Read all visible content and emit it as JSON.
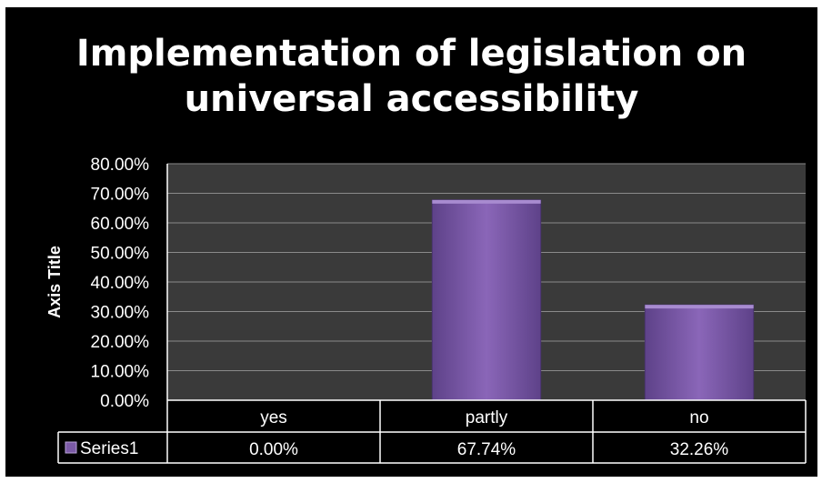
{
  "chart_data": {
    "type": "bar",
    "title": "Implementation of legislation on\nuniversal accessibility",
    "ylabel": "Axis Title",
    "xlabel": "",
    "categories": [
      "yes",
      "partly",
      "no"
    ],
    "series": [
      {
        "name": "Series1",
        "values": [
          0.0,
          67.74,
          32.26
        ]
      }
    ],
    "data_table_values": [
      "0.00%",
      "67.74%",
      "32.26%"
    ],
    "ylim": [
      0,
      80
    ],
    "yticks": [
      0,
      10,
      20,
      30,
      40,
      50,
      60,
      70,
      80
    ],
    "ytick_labels": [
      "0.00%",
      "10.00%",
      "20.00%",
      "30.00%",
      "40.00%",
      "50.00%",
      "60.00%",
      "70.00%",
      "80.00%"
    ],
    "grid": true,
    "legend_placement": "data-table",
    "colors": {
      "background": "#000000",
      "plot_area": "#3a3a3a",
      "bar": "#7b5aa6",
      "gridline": "#8a8a8a",
      "text": "#ffffff"
    }
  }
}
